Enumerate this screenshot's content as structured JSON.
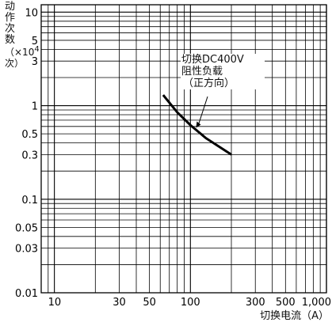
{
  "chart_data": {
    "type": "line",
    "x_scale": "log",
    "y_scale": "log",
    "xlim": [
      8,
      1000
    ],
    "ylim": [
      0.01,
      12
    ],
    "xticks": [
      10,
      30,
      50,
      100,
      300,
      500,
      1000
    ],
    "xtick_labels": [
      "10",
      "30",
      "50",
      "100",
      "300",
      "500",
      "1,000"
    ],
    "yticks": [
      0.01,
      0.03,
      0.05,
      0.1,
      0.3,
      0.5,
      1,
      3,
      5,
      10
    ],
    "ytick_labels": [
      "0.01",
      "0.03",
      "0.05",
      "0.1",
      "0.3",
      "0.5",
      "1",
      "3",
      "5",
      "10"
    ],
    "xlabel": "切换电流（A）",
    "ylabel_main": "动作次数",
    "ylabel_unit_prefix": "（×10",
    "ylabel_unit_exp": "4",
    "ylabel_unit_suffix": "次）",
    "grid": true,
    "series": [
      {
        "x": [
          63,
          80,
          100,
          130,
          160,
          200
        ],
        "y": [
          1.3,
          0.85,
          0.62,
          0.45,
          0.37,
          0.3
        ]
      }
    ],
    "annotation": {
      "line1": "切换DC400V",
      "line2": "阻性负载",
      "line3": "（正方向）"
    },
    "colors": {
      "line": "#000000",
      "grid": "#000000"
    }
  }
}
